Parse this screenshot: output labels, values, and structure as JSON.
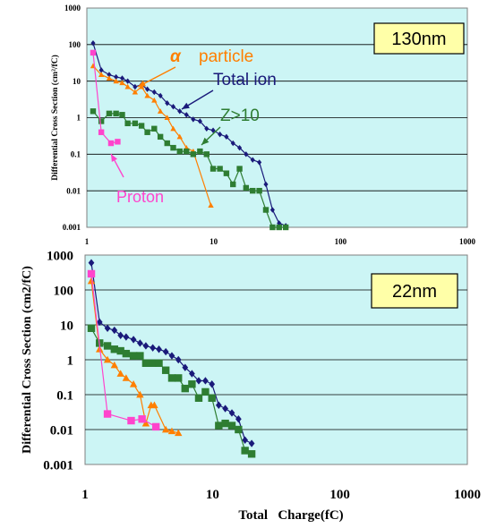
{
  "chart_data": [
    {
      "type": "line",
      "node_label": "130nm",
      "xlabel": "",
      "ylabel": "Differential Cross Section (cm²/fC)",
      "xscale": "log",
      "yscale": "log",
      "xlim": [
        1,
        1000
      ],
      "ylim": [
        0.001,
        1000
      ],
      "xticks": [
        "1",
        "10",
        "100",
        "1000"
      ],
      "yticks": [
        "0.001",
        "0.01",
        "0.1",
        "1",
        "10",
        "100",
        "1000"
      ],
      "grid": "horizontal",
      "background": "#ccf5f5",
      "series": [
        {
          "name": "Total ion",
          "color": "#1a1a7a",
          "marker": "diamond",
          "x": [
            1.12,
            1.3,
            1.5,
            1.7,
            1.9,
            2.1,
            2.4,
            2.7,
            3.0,
            3.4,
            3.8,
            4.3,
            4.8,
            5.4,
            6.1,
            6.9,
            7.8,
            8.8,
            9.9,
            11.2,
            12.6,
            14.2,
            16.0,
            18.0,
            20.3,
            22.9,
            25.8,
            29.1,
            32.8,
            37.0
          ],
          "y": [
            110,
            20,
            15,
            13,
            12,
            10,
            7,
            8,
            6,
            5,
            4,
            2.5,
            2,
            1.5,
            1.2,
            0.9,
            0.8,
            0.5,
            0.45,
            0.35,
            0.3,
            0.2,
            0.15,
            0.1,
            0.07,
            0.06,
            0.015,
            0.003,
            0.0013,
            0.0011
          ]
        },
        {
          "name": "α particle",
          "color": "#ff7f00",
          "marker": "triangle",
          "x": [
            1.12,
            1.3,
            1.5,
            1.7,
            1.9,
            2.1,
            2.4,
            2.7,
            3.0,
            3.4,
            3.8,
            4.3,
            4.8,
            5.4,
            6.1,
            6.9,
            9.5
          ],
          "y": [
            26,
            15,
            12,
            10,
            9,
            7,
            5,
            7,
            4,
            3,
            1.5,
            1,
            0.5,
            0.3,
            0.15,
            0.12,
            0.004
          ]
        },
        {
          "name": "Z>10",
          "color": "#2e7d32",
          "marker": "square",
          "x": [
            1.12,
            1.3,
            1.5,
            1.7,
            1.9,
            2.1,
            2.4,
            2.7,
            3.0,
            3.4,
            3.8,
            4.3,
            4.8,
            5.4,
            6.1,
            6.9,
            7.8,
            8.8,
            9.9,
            11.2,
            12.6,
            14.2,
            16.0,
            18.0,
            20.3,
            22.9,
            25.8,
            29.1,
            32.8,
            37.0
          ],
          "y": [
            1.5,
            0.8,
            1.3,
            1.3,
            1.2,
            0.7,
            0.7,
            0.6,
            0.4,
            0.5,
            0.3,
            0.2,
            0.15,
            0.12,
            0.12,
            0.1,
            0.12,
            0.1,
            0.04,
            0.04,
            0.03,
            0.015,
            0.04,
            0.012,
            0.01,
            0.01,
            0.003,
            0.001,
            0.001,
            0.001
          ]
        },
        {
          "name": "Proton",
          "color": "#ff44cc",
          "marker": "square",
          "x": [
            1.12,
            1.3,
            1.55,
            1.75
          ],
          "y": [
            60,
            0.4,
            0.2,
            0.22
          ]
        }
      ],
      "annotations": [
        {
          "text": "α",
          "color": "#ff7f00"
        },
        {
          "text": "particle",
          "color": "#ff7f00"
        },
        {
          "text": "Total ion",
          "color": "#1a1a7a"
        },
        {
          "text": "Z>10",
          "color": "#2e7d32"
        },
        {
          "text": "Proton",
          "color": "#ff44cc"
        }
      ]
    },
    {
      "type": "line",
      "node_label": "22nm",
      "xlabel": "Total   Charge(fC)",
      "ylabel": "Differential Cross Section (cm2/fC)",
      "xscale": "log",
      "yscale": "log",
      "xlim": [
        1,
        1000
      ],
      "ylim": [
        0.001,
        1000
      ],
      "xticks": [
        "1",
        "10",
        "100",
        "1000"
      ],
      "yticks": [
        "0.001",
        "0.01",
        "0.1",
        "1",
        "10",
        "100",
        "1000"
      ],
      "grid": "horizontal",
      "background": "#ccf5f5",
      "series": [
        {
          "color": "#1a1a7a",
          "marker": "diamond",
          "x": [
            1.12,
            1.3,
            1.5,
            1.7,
            1.9,
            2.1,
            2.4,
            2.7,
            3.0,
            3.4,
            3.8,
            4.3,
            4.8,
            5.4,
            6.1,
            6.9,
            7.8,
            8.8,
            9.9,
            11.2,
            12.6,
            14.2,
            16.0,
            18.0,
            20.3
          ],
          "y": [
            600,
            12,
            8,
            7,
            5,
            4.5,
            3.8,
            3,
            2.5,
            2.2,
            2,
            1.7,
            1.3,
            1,
            0.6,
            0.4,
            0.25,
            0.25,
            0.2,
            0.05,
            0.04,
            0.03,
            0.02,
            0.005,
            0.004
          ]
        },
        {
          "color": "#ff7f00",
          "marker": "triangle",
          "x": [
            1.12,
            1.3,
            1.5,
            1.7,
            1.9,
            2.1,
            2.4,
            2.7,
            3.0,
            3.3,
            3.5,
            4.3,
            4.8,
            5.4
          ],
          "y": [
            180,
            2,
            1,
            0.7,
            0.4,
            0.3,
            0.2,
            0.1,
            0.015,
            0.05,
            0.05,
            0.01,
            0.009,
            0.008
          ]
        },
        {
          "color": "#2e7d32",
          "marker": "square",
          "x": [
            1.12,
            1.3,
            1.5,
            1.7,
            1.9,
            2.1,
            2.4,
            2.7,
            3.0,
            3.4,
            3.8,
            4.3,
            4.8,
            5.4,
            6.1,
            6.9,
            7.8,
            8.8,
            9.9,
            11.2,
            12.6,
            14.2,
            16.0,
            18.0,
            20.3
          ],
          "y": [
            8,
            3,
            2.5,
            2,
            1.8,
            1.5,
            1.3,
            1.3,
            0.8,
            0.8,
            0.8,
            0.5,
            0.3,
            0.3,
            0.15,
            0.2,
            0.08,
            0.12,
            0.08,
            0.013,
            0.015,
            0.013,
            0.01,
            0.0025,
            0.002
          ]
        },
        {
          "color": "#ff44cc",
          "marker": "square",
          "x": [
            1.12,
            1.5,
            2.3,
            2.8,
            3.6
          ],
          "y": [
            290,
            0.028,
            0.018,
            0.02,
            0.012
          ]
        }
      ]
    }
  ]
}
